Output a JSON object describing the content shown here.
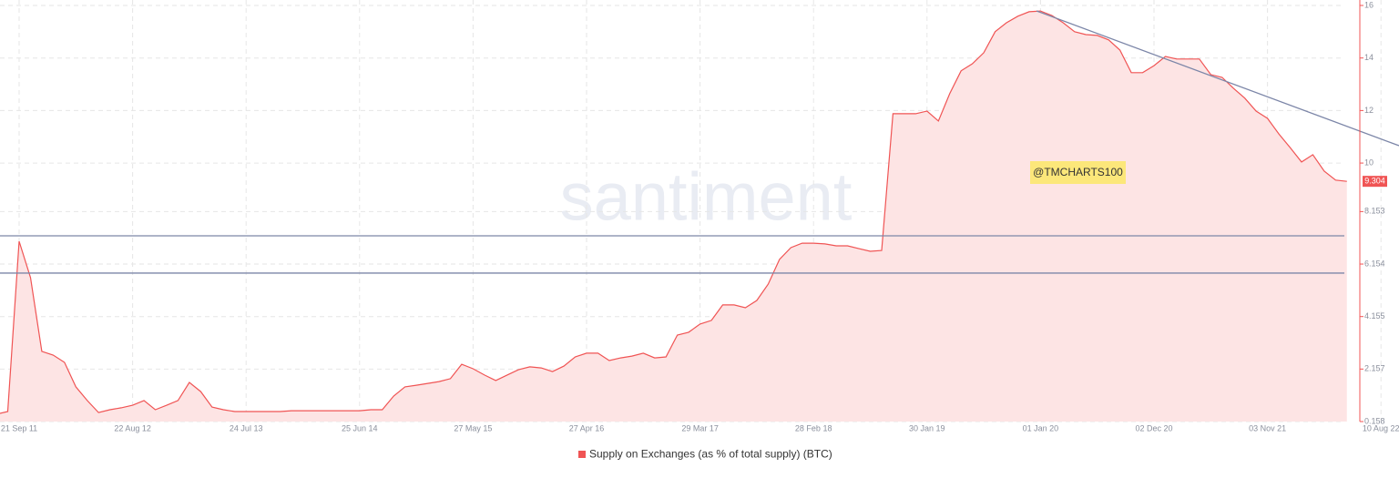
{
  "chart_data": {
    "type": "area",
    "watermark": "santiment",
    "annotation": "@TMCHARTS100",
    "categories": [
      null,
      null,
      "21 Sep 11",
      null,
      null,
      null,
      null,
      null,
      null,
      null,
      null,
      null,
      "22 Aug 12",
      null,
      null,
      null,
      null,
      null,
      null,
      null,
      null,
      null,
      "24 Jul 13",
      null,
      null,
      null,
      null,
      null,
      null,
      null,
      null,
      null,
      "25 Jun 14",
      null,
      null,
      null,
      null,
      null,
      null,
      null,
      null,
      null,
      "27 May 15",
      null,
      null,
      null,
      null,
      null,
      null,
      null,
      null,
      null,
      "27 Apr 16",
      null,
      null,
      null,
      null,
      null,
      null,
      null,
      null,
      null,
      "29 Mar 17",
      null,
      null,
      null,
      null,
      null,
      null,
      null,
      null,
      null,
      "28 Feb 18",
      null,
      null,
      null,
      null,
      null,
      null,
      null,
      null,
      null,
      "30 Jan 19",
      null,
      null,
      null,
      null,
      null,
      null,
      null,
      null,
      null,
      "01 Jan 20",
      null,
      null,
      null,
      null,
      null,
      null,
      null,
      null,
      null,
      "02 Dec 20",
      null,
      null,
      null,
      null,
      null,
      null,
      null,
      null,
      null,
      "03 Nov 21",
      null,
      null,
      null,
      null,
      null,
      null,
      null,
      null,
      null,
      "10 Aug 22"
    ],
    "series": [
      {
        "name": "Supply on Exchanges (as % of total supply) (BTC)",
        "color": "#f05454",
        "fill": "#fde4e4",
        "values": [
          0.44,
          0.54,
          7.02,
          5.64,
          2.83,
          2.69,
          2.41,
          1.48,
          0.96,
          0.5,
          0.61,
          0.68,
          0.78,
          0.96,
          0.61,
          0.78,
          0.96,
          1.65,
          1.3,
          0.71,
          0.61,
          0.54,
          0.54,
          0.54,
          0.54,
          0.54,
          0.57,
          0.57,
          0.57,
          0.57,
          0.57,
          0.57,
          0.57,
          0.61,
          0.61,
          1.13,
          1.48,
          1.54,
          1.61,
          1.68,
          1.79,
          2.34,
          2.17,
          1.93,
          1.72,
          1.93,
          2.13,
          2.24,
          2.2,
          2.06,
          2.27,
          2.62,
          2.76,
          2.76,
          2.48,
          2.58,
          2.65,
          2.76,
          2.58,
          2.62,
          3.45,
          3.56,
          3.87,
          4.01,
          4.6,
          4.6,
          4.49,
          4.77,
          5.39,
          6.33,
          6.78,
          6.95,
          6.95,
          6.92,
          6.85,
          6.85,
          6.74,
          6.64,
          6.67,
          11.88,
          11.88,
          11.88,
          11.98,
          11.6,
          12.64,
          13.51,
          13.78,
          14.2,
          15.0,
          15.34,
          15.59,
          15.76,
          15.79,
          15.62,
          15.34,
          15.0,
          14.89,
          14.86,
          14.69,
          14.3,
          13.44,
          13.44,
          13.71,
          14.06,
          13.96,
          13.96,
          13.96,
          13.37,
          13.26,
          12.85,
          12.47,
          11.98,
          11.7,
          11.11,
          10.59,
          10.04,
          10.32,
          9.69,
          9.35,
          9.304,
          null,
          null,
          null
        ]
      }
    ],
    "ylim": [
      0.158,
      16
    ],
    "yticks": [
      0.158,
      2.157,
      4.155,
      6.154,
      8.153,
      10,
      12,
      14,
      16
    ],
    "levels": [
      7.23,
      5.81
    ],
    "grid": true
  }
}
